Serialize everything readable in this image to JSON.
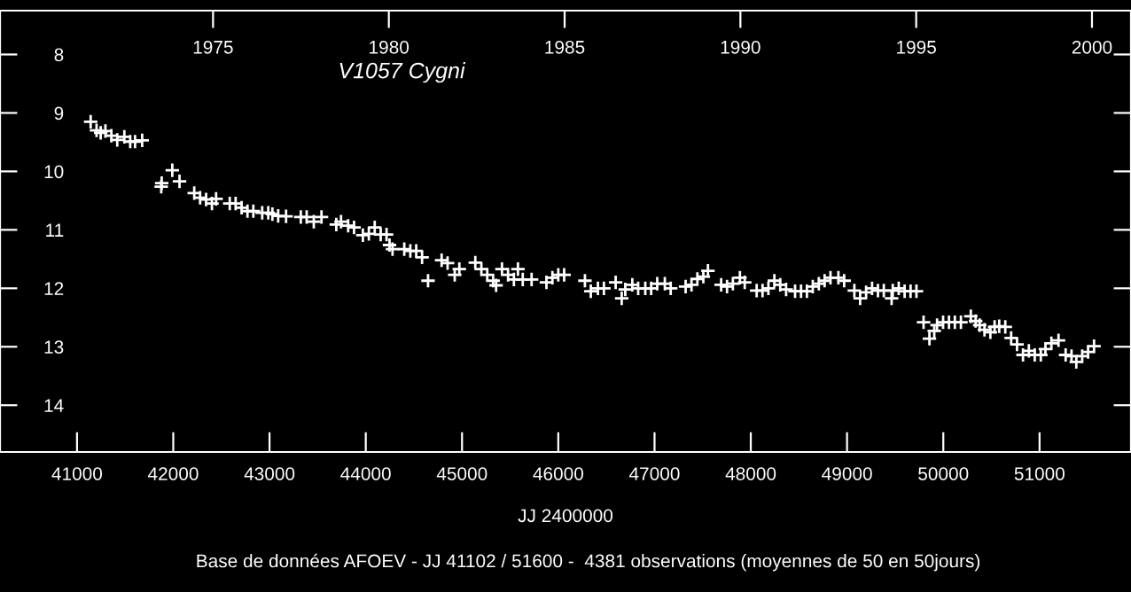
{
  "chart_data": {
    "type": "scatter",
    "title": "V1057 Cygni",
    "xlabel": "JJ 2400000",
    "annotations": [
      "Base de données AFOEV - JJ 41102 / 51600 -  4381 observations (moyennes de 50 en 50jours)"
    ],
    "marker": "cross",
    "grid": false,
    "legend": false,
    "xlim": [
      40200,
      51950
    ],
    "xticks": [
      41000,
      42000,
      43000,
      44000,
      45000,
      46000,
      47000,
      48000,
      49000,
      50000,
      51000
    ],
    "x2lim": [
      1968.94,
      2001.11
    ],
    "x2ticks": [
      1975,
      1980,
      1985,
      1990,
      1995,
      2000
    ],
    "ylim": [
      14.8,
      7.25
    ],
    "yticks": [
      8,
      9,
      10,
      11,
      12,
      13,
      14
    ],
    "series": [
      {
        "color": "#ffffff",
        "x": [
          41142,
          41203,
          41246,
          41295,
          41357,
          41418,
          41492,
          41553,
          41603,
          41677,
          41875,
          41880,
          41990,
          42065,
          42218,
          42279,
          42341,
          42402,
          42445,
          42587,
          42648,
          42710,
          42771,
          42832,
          42924,
          42987,
          43030,
          43090,
          43172,
          43325,
          43386,
          43460,
          43540,
          43694,
          43743,
          43817,
          43878,
          43970,
          44032,
          44093,
          44155,
          44216,
          44247,
          44278,
          44400,
          44463,
          44524,
          44585,
          44647,
          44788,
          44850,
          44924,
          44972,
          45138,
          45201,
          45262,
          45323,
          45354,
          45415,
          45478,
          45539,
          45581,
          45631,
          45723,
          45877,
          45939,
          46000,
          46061,
          46277,
          46338,
          46412,
          46474,
          46596,
          46659,
          46696,
          46769,
          46830,
          46904,
          46965,
          47028,
          47107,
          47168,
          47323,
          47384,
          47445,
          47507,
          47555,
          47692,
          47753,
          47814,
          47887,
          47937,
          48061,
          48122,
          48183,
          48245,
          48306,
          48367,
          48460,
          48522,
          48583,
          48644,
          48707,
          48767,
          48828,
          48910,
          48970,
          49076,
          49136,
          49198,
          49260,
          49321,
          49382,
          49463,
          49475,
          49537,
          49598,
          49660,
          49721,
          49795,
          49856,
          49906,
          49935,
          49998,
          50059,
          50120,
          50183,
          50286,
          50336,
          50378,
          50428,
          50489,
          50533,
          50581,
          50644,
          50705,
          50766,
          50828,
          50889,
          50950,
          51013,
          51061,
          51123,
          51197,
          51271,
          51332,
          51382,
          51443,
          51504,
          51566
        ],
        "values": [
          9.15,
          9.3,
          9.34,
          9.31,
          9.39,
          9.46,
          9.41,
          9.49,
          9.49,
          9.47,
          10.26,
          10.2,
          9.98,
          10.17,
          10.37,
          10.45,
          10.48,
          10.55,
          10.47,
          10.55,
          10.55,
          10.62,
          10.68,
          10.68,
          10.71,
          10.71,
          10.73,
          10.76,
          10.77,
          10.78,
          10.78,
          10.86,
          10.78,
          10.91,
          10.86,
          10.93,
          10.96,
          11.09,
          11.07,
          10.96,
          11.08,
          11.08,
          11.26,
          11.33,
          11.33,
          11.36,
          11.36,
          11.47,
          11.87,
          11.52,
          11.57,
          11.77,
          11.67,
          11.56,
          11.67,
          11.77,
          11.87,
          11.95,
          11.67,
          11.77,
          11.85,
          11.67,
          11.85,
          11.85,
          11.9,
          11.82,
          11.77,
          11.77,
          11.87,
          12.05,
          12.0,
          12.0,
          11.9,
          12.17,
          12.02,
          11.94,
          12.0,
          12.0,
          12.0,
          11.92,
          11.92,
          12.0,
          11.97,
          11.94,
          11.84,
          11.8,
          11.7,
          11.94,
          11.97,
          11.92,
          11.82,
          11.9,
          12.04,
          12.04,
          12.0,
          11.87,
          11.94,
          12.02,
          12.05,
          12.05,
          12.05,
          11.97,
          11.92,
          11.87,
          11.82,
          11.82,
          11.87,
          12.04,
          12.17,
          12.07,
          12.0,
          12.04,
          12.04,
          12.17,
          12.04,
          12.0,
          12.05,
          12.05,
          12.05,
          12.58,
          12.86,
          12.73,
          12.63,
          12.58,
          12.58,
          12.58,
          12.58,
          12.48,
          12.56,
          12.63,
          12.71,
          12.75,
          12.66,
          12.65,
          12.66,
          12.85,
          12.96,
          13.14,
          13.07,
          13.14,
          13.14,
          13.04,
          12.94,
          12.89,
          13.14,
          13.16,
          13.26,
          13.16,
          13.09,
          12.99
        ]
      }
    ]
  }
}
